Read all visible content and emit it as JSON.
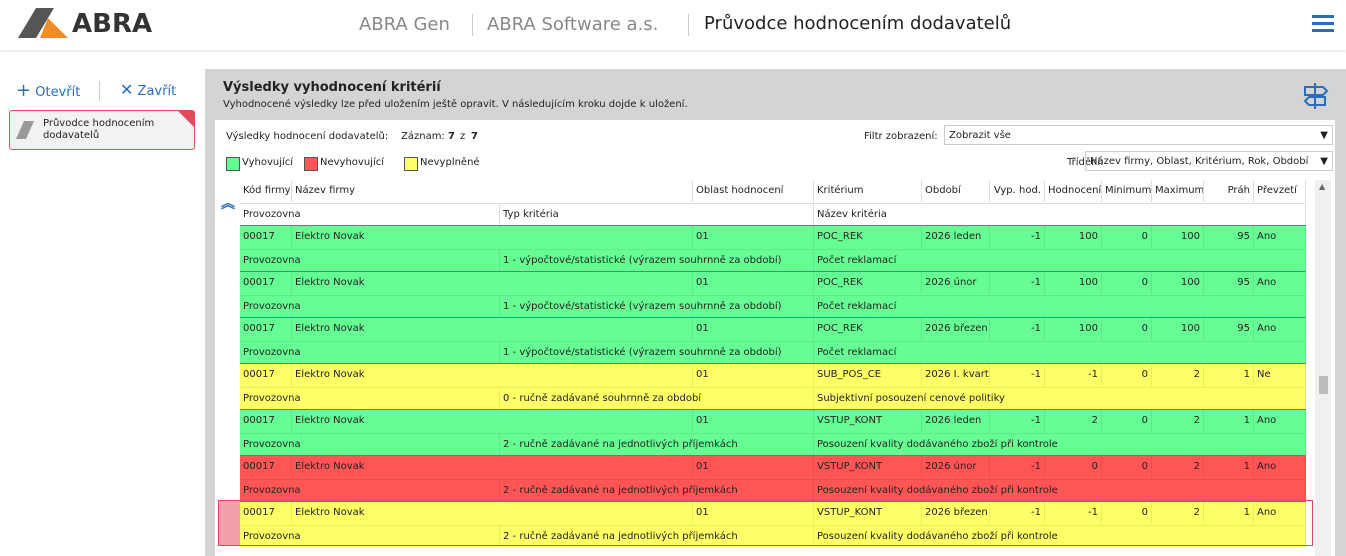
{
  "header": {
    "logo": "ABRA",
    "app": "ABRA Gen",
    "company": "ABRA Software a.s.",
    "page_title": "Průvodce hodnocením dodavatelů"
  },
  "sidebar": {
    "open": "Otevřít",
    "close": "Zavřít",
    "tab": "Průvodce hodnocením dodavatelů"
  },
  "panel": {
    "title": "Výsledky vyhodnocení kritérií",
    "subtitle": "Vyhodnocené výsledky lze před uložením ještě opravit. V následujícím kroku dojde k uložení.",
    "results_label": "Výsledky hodnocení dodavatelů:",
    "record_label": "Záznam:",
    "record_current": 7,
    "record_sep": "z",
    "record_total": 7,
    "filter_label": "Filtr zobrazení:",
    "filter_value": "Zobrazit vše",
    "sort_label": "Třídění:",
    "sort_value": "Název firmy, Oblast, Kritérium, Rok, Období",
    "legend": [
      {
        "label": "Vyhovující",
        "color": "#66fd94"
      },
      {
        "label": "Nevyhovující",
        "color": "#ff5555"
      },
      {
        "label": "Nevyplněné",
        "color": "#ffff66"
      }
    ]
  },
  "table": {
    "columns": [
      "Kód firmy",
      "Název firmy",
      "Oblast hodnocení",
      "Kritérium",
      "Období",
      "Vyp. hod.",
      "Hodnocení",
      "Minimum",
      "Maximum",
      "Práh",
      "Převzetí"
    ],
    "columns2": [
      "Provozovna",
      "Typ kritéria",
      "Název kritéria"
    ],
    "rows": [
      {
        "color": "#66fd94",
        "cells": [
          "00017",
          "Elektro Novak",
          "01",
          "POC_REK",
          "2026 leden",
          -1,
          100,
          0,
          100,
          95,
          "Ano"
        ],
        "cells2": [
          "Provozovna",
          "1 - výpočtové/statistické (výrazem souhrnně za období)",
          "Počet reklamací"
        ]
      },
      {
        "color": "#66fd94",
        "cells": [
          "00017",
          "Elektro Novak",
          "01",
          "POC_REK",
          "2026 únor",
          -1,
          100,
          0,
          100,
          95,
          "Ano"
        ],
        "cells2": [
          "Provozovna",
          "1 - výpočtové/statistické (výrazem souhrnně za období)",
          "Počet reklamací"
        ]
      },
      {
        "color": "#66fd94",
        "cells": [
          "00017",
          "Elektro Novak",
          "01",
          "POC_REK",
          "2026 březen",
          -1,
          100,
          0,
          100,
          95,
          "Ano"
        ],
        "cells2": [
          "Provozovna",
          "1 - výpočtové/statistické (výrazem souhrnně za období)",
          "Počet reklamací"
        ]
      },
      {
        "color": "#ffff66",
        "cells": [
          "00017",
          "Elektro Novak",
          "01",
          "SUB_POS_CE",
          "2026 I. kvart",
          -1,
          -1,
          0,
          2,
          1,
          "Ne"
        ],
        "cells2": [
          "Provozovna",
          "0 - ručně zadávané souhrnně za období",
          "Subjektivní posouzení cenové politiky"
        ]
      },
      {
        "color": "#66fd94",
        "cells": [
          "00017",
          "Elektro Novak",
          "01",
          "VSTUP_KONT",
          "2026 leden",
          -1,
          2,
          0,
          2,
          1,
          "Ano"
        ],
        "cells2": [
          "Provozovna",
          "2 - ručně zadávané na jednotlivých příjemkách",
          "Posouzení kvality dodávaného zboží při kontrole"
        ]
      },
      {
        "color": "#ff5555",
        "cells": [
          "00017",
          "Elektro Novak",
          "01",
          "VSTUP_KONT",
          "2026 únor",
          -1,
          0,
          0,
          2,
          1,
          "Ano"
        ],
        "cells2": [
          "Provozovna",
          "2 - ručně zadávané na jednotlivých příjemkách",
          "Posouzení kvality dodávaného zboží při kontrole"
        ]
      },
      {
        "color": "#ffff66",
        "cells": [
          "00017",
          "Elektro Novak",
          "01",
          "VSTUP_KONT",
          "2026 březen",
          -1,
          -1,
          0,
          2,
          1,
          "Ano"
        ],
        "cells2": [
          "Provozovna",
          "2 - ručně zadávané na jednotlivých příjemkách",
          "Posouzení kvality dodávaného zboží při kontrole"
        ]
      }
    ]
  }
}
